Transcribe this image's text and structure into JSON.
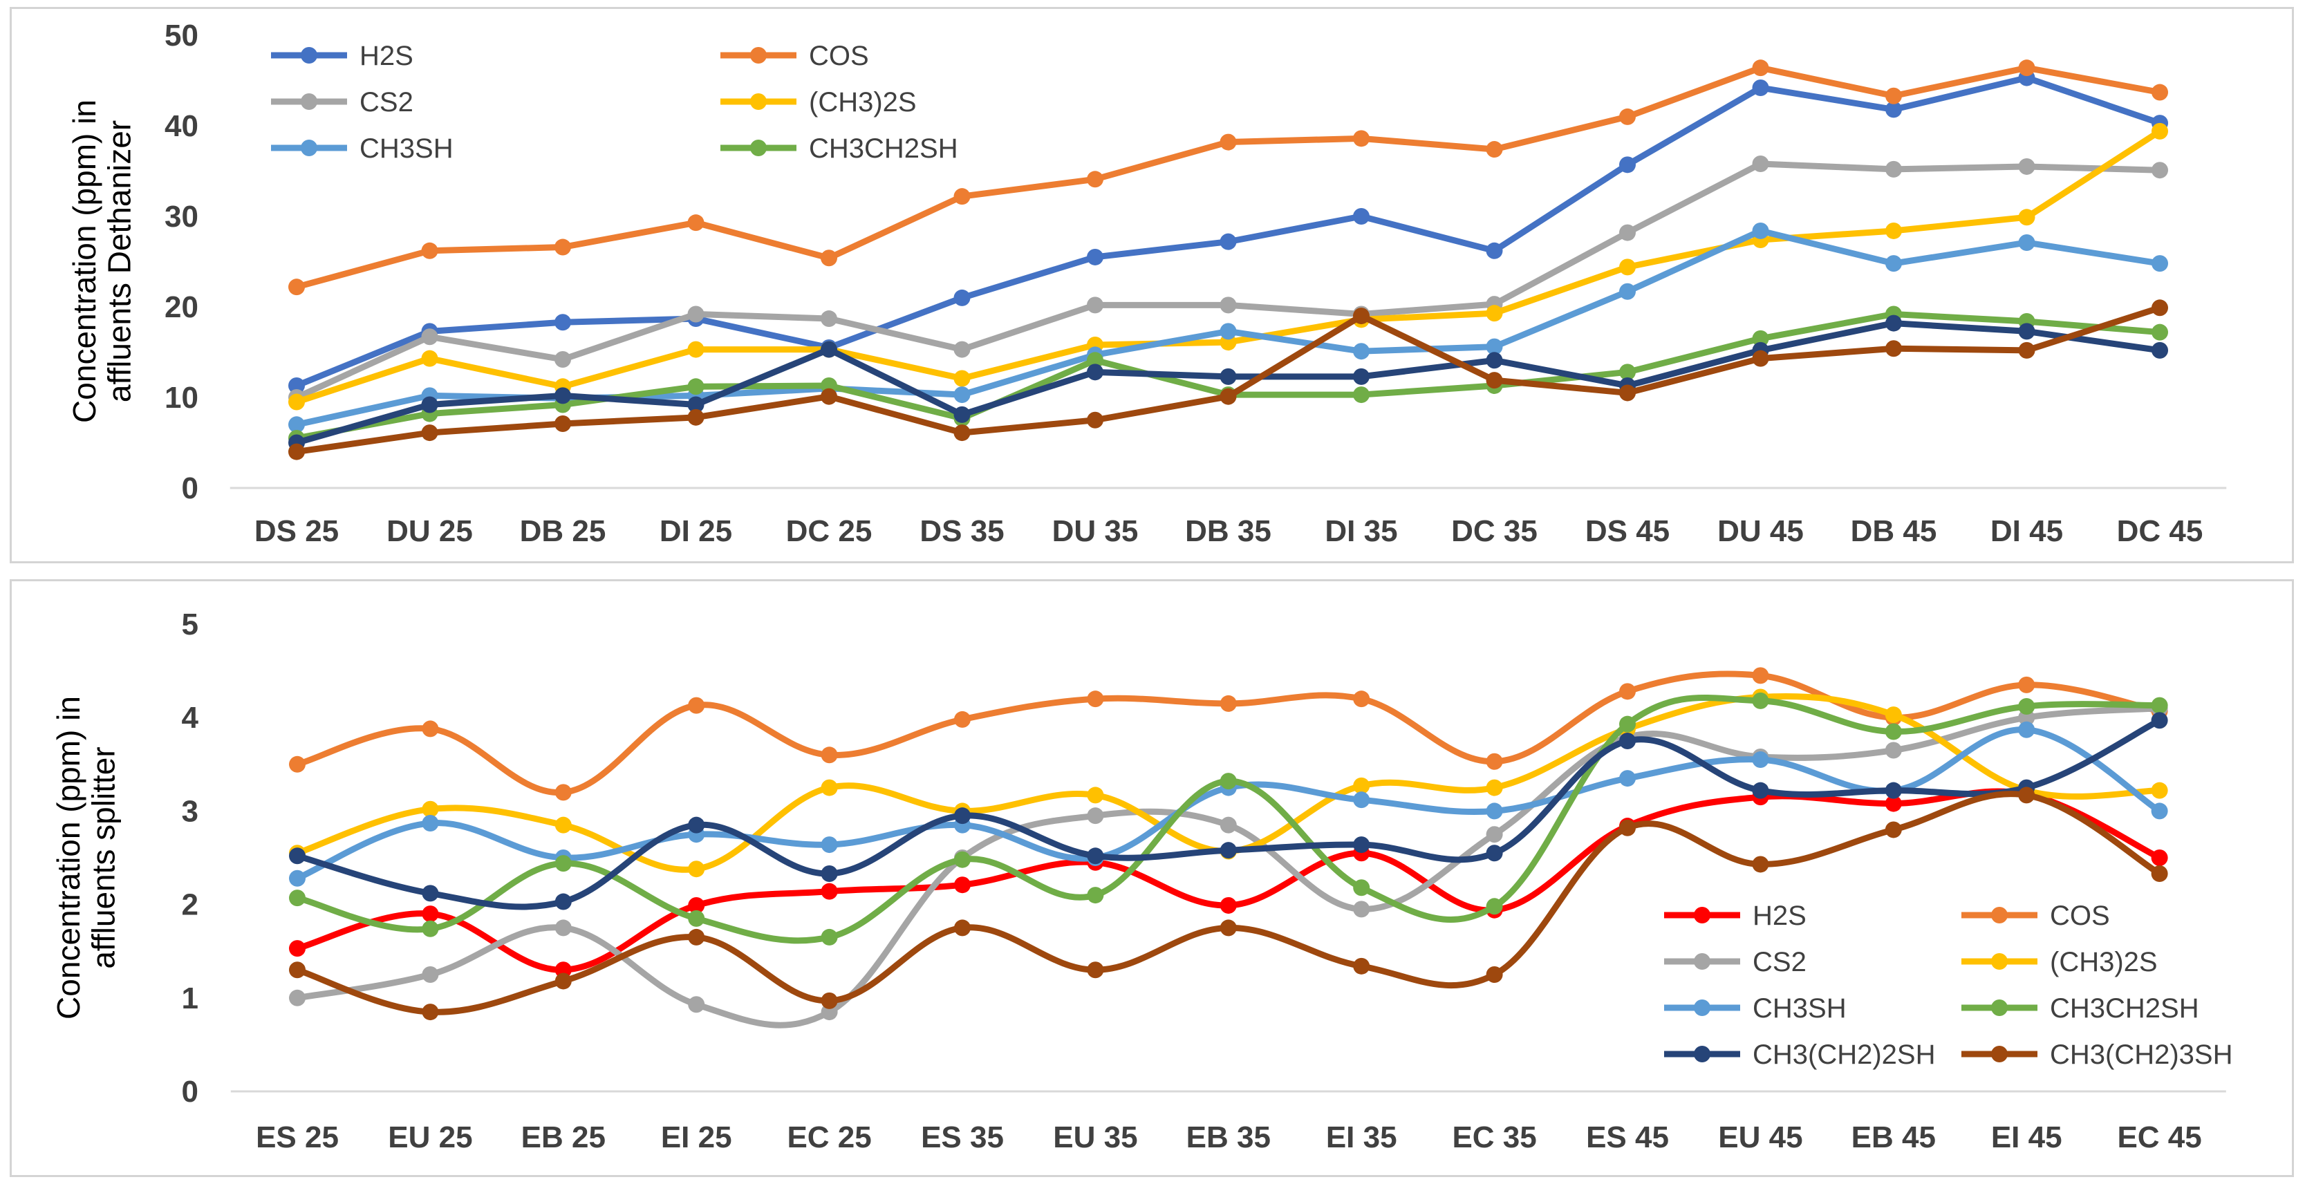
{
  "chart_data": [
    {
      "type": "line",
      "title": "",
      "ylabel_line1": "Concentration (ppm) in",
      "ylabel_line2": "affluents Dethanizer",
      "xlabel": "",
      "ylim": [
        0,
        50
      ],
      "yticks": [
        0,
        10,
        20,
        30,
        40,
        50
      ],
      "grid": false,
      "smooth": false,
      "legend_position": "top-left",
      "categories": [
        "DS 25",
        "DU 25",
        "DB 25",
        "DI 25",
        "DC 25",
        "DS 35",
        "DU 35",
        "DB 35",
        "DI 35",
        "DC 35",
        "DS 45",
        "DU 45",
        "DB 45",
        "DI 45",
        "DC 45"
      ],
      "series": [
        {
          "name": "H2S",
          "color": "#4472C4",
          "values": [
            11.3,
            17.3,
            18.3,
            18.7,
            15.5,
            21,
            25.5,
            27.2,
            30,
            26.2,
            35.7,
            44.2,
            41.8,
            45.3,
            40.3
          ]
        },
        {
          "name": "COS",
          "color": "#ED7D31",
          "values": [
            22.2,
            26.2,
            26.6,
            29.3,
            25.4,
            32.2,
            34.1,
            38.2,
            38.6,
            37.4,
            41,
            46.4,
            43.3,
            46.4,
            43.7
          ]
        },
        {
          "name": "CS2",
          "color": "#A5A5A5",
          "values": [
            10,
            16.7,
            14.2,
            19.2,
            18.7,
            15.3,
            20.2,
            20.2,
            19.2,
            20.3,
            28.2,
            35.8,
            35.2,
            35.5,
            35.1
          ]
        },
        {
          "name": "(CH3)2S",
          "color": "#FFC000",
          "values": [
            9.5,
            14.3,
            11.2,
            15.3,
            15.3,
            12.1,
            15.8,
            16.1,
            18.6,
            19.3,
            24.4,
            27.4,
            28.4,
            29.9,
            39.4
          ]
        },
        {
          "name": "CH3SH",
          "color": "#5B9BD5",
          "values": [
            7,
            10.2,
            9.9,
            10.2,
            11,
            10.3,
            14.7,
            17.3,
            15.1,
            15.6,
            21.7,
            28.4,
            24.8,
            27.1,
            24.8
          ]
        },
        {
          "name": "CH3CH2SH",
          "color": "#70AD47",
          "values": [
            5.5,
            8.2,
            9.2,
            11.2,
            11.3,
            7.7,
            14.1,
            10.3,
            10.3,
            11.3,
            12.8,
            16.5,
            19.2,
            18.4,
            17.2
          ]
        },
        {
          "name": "CH3(CH2)2SH",
          "color": "#264478",
          "values": [
            5,
            9.2,
            10.2,
            9.2,
            15.3,
            8.1,
            12.8,
            12.3,
            12.3,
            14.1,
            11.3,
            15.2,
            18.2,
            17.3,
            15.2
          ]
        },
        {
          "name": "CH3(CH2)3SH",
          "color": "#9E480E",
          "values": [
            4,
            6.1,
            7.1,
            7.8,
            10.1,
            6.1,
            7.5,
            10.1,
            19,
            11.9,
            10.5,
            14.3,
            15.4,
            15.2,
            19.9
          ]
        }
      ],
      "legend": [
        {
          "name": "H2S",
          "color": "#4472C4"
        },
        {
          "name": "COS",
          "color": "#ED7D31"
        },
        {
          "name": "CS2",
          "color": "#A5A5A5"
        },
        {
          "name": "(CH3)2S",
          "color": "#FFC000"
        },
        {
          "name": "CH3SH",
          "color": "#5B9BD5"
        },
        {
          "name": "CH3CH2SH",
          "color": "#70AD47"
        }
      ]
    },
    {
      "type": "line",
      "title": "",
      "ylabel_line1": "Concentration (ppm) in",
      "ylabel_line2": "affluents splitter",
      "xlabel": "",
      "ylim": [
        0,
        5
      ],
      "yticks": [
        0,
        1,
        2,
        3,
        4,
        5
      ],
      "grid": false,
      "smooth": true,
      "legend_position": "bottom-right",
      "categories": [
        "ES 25",
        "EU 25",
        "EB 25",
        "EI 25",
        "EC 25",
        "ES 35",
        "EU 35",
        "EB 35",
        "EI 35",
        "EC 35",
        "ES 45",
        "EU 45",
        "EB 45",
        "EI 45",
        "EC 45"
      ],
      "series": [
        {
          "name": "H2S",
          "color": "#FF0000",
          "values": [
            1.53,
            1.9,
            1.3,
            1.99,
            2.14,
            2.21,
            2.45,
            1.99,
            2.55,
            1.94,
            2.84,
            3.15,
            3.08,
            3.18,
            2.5
          ]
        },
        {
          "name": "COS",
          "color": "#ED7D31",
          "values": [
            3.5,
            3.88,
            3.2,
            4.13,
            3.6,
            3.98,
            4.2,
            4.15,
            4.2,
            3.53,
            4.28,
            4.45,
            4.0,
            4.35,
            4.07
          ]
        },
        {
          "name": "CS2",
          "color": "#A5A5A5",
          "values": [
            1.0,
            1.25,
            1.75,
            0.93,
            0.85,
            2.5,
            2.95,
            2.85,
            1.95,
            2.75,
            3.79,
            3.58,
            3.65,
            4.0,
            4.1
          ]
        },
        {
          "name": "(CH3)2S",
          "color": "#FFC000",
          "values": [
            2.55,
            3.02,
            2.85,
            2.38,
            3.25,
            3.0,
            3.17,
            2.57,
            3.27,
            3.25,
            3.88,
            4.22,
            4.03,
            3.22,
            3.22
          ]
        },
        {
          "name": "CH3SH",
          "color": "#5B9BD5",
          "values": [
            2.28,
            2.87,
            2.5,
            2.75,
            2.64,
            2.85,
            2.5,
            3.25,
            3.12,
            3.0,
            3.35,
            3.55,
            3.22,
            3.87,
            3.0
          ]
        },
        {
          "name": "CH3CH2SH",
          "color": "#70AD47",
          "values": [
            2.07,
            1.74,
            2.44,
            1.85,
            1.65,
            2.48,
            2.1,
            3.32,
            2.18,
            1.98,
            3.93,
            4.18,
            3.85,
            4.12,
            4.13
          ]
        },
        {
          "name": "CH3(CH2)2SH",
          "color": "#264478",
          "values": [
            2.52,
            2.12,
            2.03,
            2.85,
            2.33,
            2.95,
            2.52,
            2.58,
            2.64,
            2.55,
            3.75,
            3.22,
            3.22,
            3.25,
            3.97
          ]
        },
        {
          "name": "CH3(CH2)3SH",
          "color": "#9E480E",
          "values": [
            1.3,
            0.85,
            1.18,
            1.65,
            0.97,
            1.75,
            1.3,
            1.75,
            1.34,
            1.25,
            2.82,
            2.43,
            2.8,
            3.17,
            2.33
          ]
        }
      ],
      "legend": [
        {
          "name": "H2S",
          "color": "#FF0000"
        },
        {
          "name": "COS",
          "color": "#ED7D31"
        },
        {
          "name": "CS2",
          "color": "#A5A5A5"
        },
        {
          "name": "(CH3)2S",
          "color": "#FFC000"
        },
        {
          "name": "CH3SH",
          "color": "#5B9BD5"
        },
        {
          "name": "CH3CH2SH",
          "color": "#70AD47"
        },
        {
          "name": "CH3(CH2)2SH",
          "color": "#264478"
        },
        {
          "name": "CH3(CH2)3SH",
          "color": "#9E480E"
        }
      ]
    }
  ]
}
